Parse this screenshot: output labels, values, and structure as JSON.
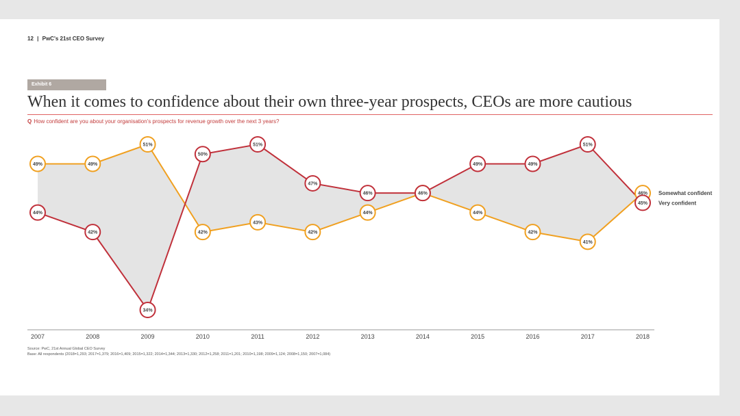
{
  "header": {
    "page_number": "12",
    "separator": "|",
    "report_title": "PwC's 21st CEO Survey"
  },
  "exhibit": {
    "label": "Exhibit 6"
  },
  "title": "When it comes to confidence about their own three-year prospects, CEOs are more cautious",
  "question": {
    "prefix": "Q",
    "text": "How confident are you about your organisation's prospects for revenue growth over the next 3 years?"
  },
  "colors": {
    "very": "#c0303a",
    "somewhat": "#f0a020",
    "fill": "#e4e4e4",
    "axis": "#999999"
  },
  "chart_data": {
    "type": "line",
    "categories": [
      "2007",
      "2008",
      "2009",
      "2010",
      "2011",
      "2012",
      "2013",
      "2014",
      "2015",
      "2016",
      "2017",
      "2018"
    ],
    "series": [
      {
        "name": "Somewhat confident",
        "values": [
          49,
          49,
          51,
          42,
          43,
          42,
          44,
          46,
          44,
          42,
          41,
          46
        ]
      },
      {
        "name": "Very confident",
        "values": [
          44,
          42,
          34,
          50,
          51,
          47,
          46,
          46,
          49,
          49,
          51,
          45
        ]
      }
    ],
    "unit": "%",
    "ylim": [
      34,
      51
    ],
    "grid": false,
    "legend": "right"
  },
  "source": {
    "line1": "Source: PwC, 21st Annual Global CEO Survey",
    "line2": "Base: All respondents (2018=1,293; 2017=1,379; 2016=1,409; 2015=1,322; 2014=1,344; 2013=1,330; 2012=1,258; 2011=1,201; 2010=1,198; 2009=1,124; 2008=1,150; 2007=1,084)"
  }
}
